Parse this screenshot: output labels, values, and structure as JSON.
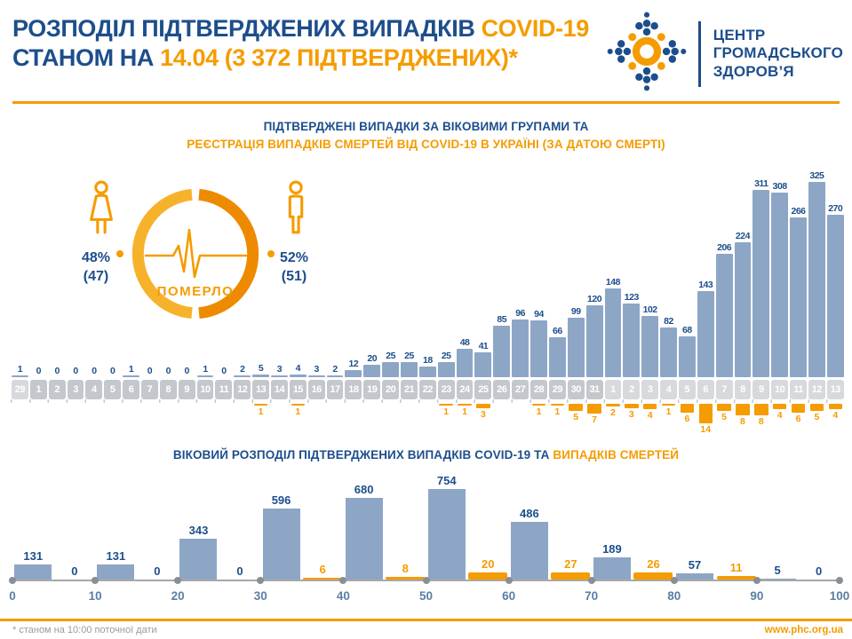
{
  "header": {
    "title_line1_blue": "РОЗПОДІЛ ПІДТВЕРДЖЕНИХ ВИПАДКІВ",
    "title_line1_orange": "COVID-19",
    "title_line2_blue": "СТАНОМ НА",
    "title_line2_orange": "14.04 (3 372 ПІДТВЕРДЖЕНИХ)*",
    "logo_line1": "ЦЕНТР",
    "logo_line2": "ГРОМАДСЬКОГО",
    "logo_line3": "ЗДОРОВ’Я"
  },
  "colors": {
    "dark_blue": "#1D4E8C",
    "bar_blue": "#8EA6C6",
    "orange": "#F59C00",
    "ring_left": "#F7B22C",
    "ring_right": "#EE8A00",
    "box_gray_dark": "#C4C8CC",
    "box_gray_light": "#D7D9DC"
  },
  "died_widget": {
    "female_percent": "48%",
    "female_count": "(47)",
    "male_percent": "52%",
    "male_count": "(51)",
    "label": "ПОМЕРЛО"
  },
  "chart_data": [
    {
      "type": "bar",
      "name": "daily_confirmed_cases_and_deaths",
      "title_blue": "ПІДТВЕРДЖЕНІ ВИПАДКИ ЗА ВІКОВИМИ ГРУПАМИ ТА",
      "title_orange": "РЕЄСТРАЦІЯ ВИПАДКІВ СМЕРТЕЙ ВІД COVID-19 В УКРАЇНІ (ЗА ДАТОЮ СМЕРТІ)",
      "categories": [
        "29",
        "1",
        "2",
        "3",
        "4",
        "5",
        "6",
        "7",
        "8",
        "9",
        "10",
        "11",
        "12",
        "13",
        "14",
        "15",
        "16",
        "17",
        "18",
        "19",
        "20",
        "21",
        "22",
        "23",
        "24",
        "25",
        "26",
        "27",
        "28",
        "29",
        "30",
        "31",
        "1",
        "2",
        "3",
        "4",
        "5",
        "6",
        "7",
        "8",
        "9",
        "10",
        "11",
        "12",
        "13"
      ],
      "april_start_index": 32,
      "ylim": [
        0,
        325
      ],
      "legend_position": "none",
      "grid": false,
      "series": [
        {
          "name": "confirmed_cases",
          "values": [
            1,
            0,
            0,
            0,
            0,
            0,
            1,
            0,
            0,
            0,
            1,
            0,
            2,
            5,
            3,
            4,
            3,
            2,
            12,
            20,
            25,
            25,
            18,
            25,
            48,
            41,
            85,
            96,
            94,
            66,
            99,
            120,
            148,
            123,
            102,
            82,
            68,
            143,
            206,
            224,
            311,
            308,
            266,
            325,
            270
          ]
        },
        {
          "name": "deaths",
          "values": [
            0,
            0,
            0,
            0,
            0,
            0,
            0,
            0,
            0,
            0,
            0,
            0,
            0,
            1,
            0,
            1,
            0,
            0,
            0,
            0,
            0,
            0,
            0,
            1,
            1,
            3,
            0,
            0,
            1,
            1,
            5,
            7,
            2,
            3,
            4,
            1,
            6,
            14,
            5,
            8,
            8,
            4,
            6,
            5,
            4
          ]
        }
      ]
    },
    {
      "type": "bar",
      "name": "age_distribution_cases_and_deaths",
      "title_blue": "ВІКОВИЙ РОЗПОДІЛ ПІДТВЕРДЖЕНИХ ВИПАДКІВ COVID-19 ТА",
      "title_orange": "ВИПАДКІВ СМЕРТЕЙ",
      "categories": [
        "0–10",
        "10–20",
        "20–30",
        "30–40",
        "40–50",
        "50–60",
        "60–70",
        "70–80",
        "80–90",
        "90–100"
      ],
      "axis_ticks": [
        "0",
        "10",
        "20",
        "30",
        "40",
        "50",
        "60",
        "70",
        "80",
        "90",
        "100"
      ],
      "ylim": [
        0,
        754
      ],
      "legend_position": "none",
      "grid": false,
      "series": [
        {
          "name": "confirmed_cases",
          "values": [
            131,
            131,
            343,
            596,
            680,
            754,
            486,
            189,
            57,
            5
          ]
        },
        {
          "name": "deaths",
          "values": [
            0,
            0,
            0,
            6,
            8,
            20,
            27,
            26,
            11,
            0
          ]
        }
      ]
    }
  ],
  "footer": {
    "note": "* станом на 10:00 поточної дати",
    "website": "www.phc.org.ua"
  }
}
